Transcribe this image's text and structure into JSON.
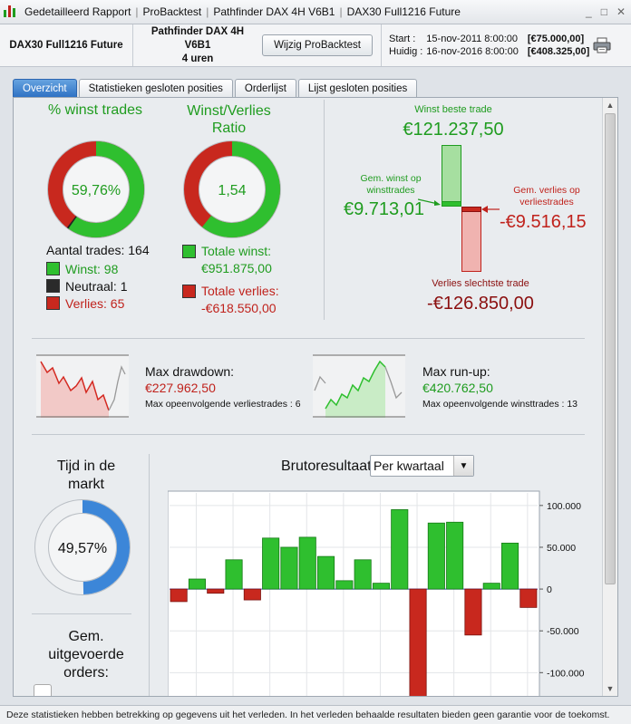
{
  "titlebar": {
    "crumbs": [
      "Gedetailleerd Rapport",
      "ProBacktest",
      "Pathfinder DAX 4H V6B1",
      "DAX30 Full1216 Future"
    ],
    "controls": [
      "_",
      "□",
      "✕"
    ]
  },
  "header": {
    "instrument": "DAX30 Full1216 Future",
    "system_name": "Pathfinder DAX 4H V6B1",
    "system_period": "4 uren",
    "change_button": "Wijzig ProBacktest",
    "start_label": "Start :",
    "start_date": "15-nov-2011 8:00:00",
    "start_value": "[€75.000,00]",
    "current_label": "Huidig :",
    "current_date": "16-nov-2016 8:00:00",
    "current_value": "[€408.325,00]"
  },
  "tabs": [
    "Overzicht",
    "Statistieken gesloten posities",
    "Orderlijst",
    "Lijst gesloten posities"
  ],
  "win_pct": {
    "title": "% winst trades",
    "value": "59,76%",
    "trades_label": "Aantal trades: 164",
    "wins": "Winst: 98",
    "neutral": "Neutraal: 1",
    "losses": "Verlies: 65",
    "win_fraction": 0.5976,
    "neutral_fraction": 0.0061,
    "loss_fraction": 0.3963
  },
  "ratio": {
    "title_line1": "Winst/Verlies",
    "title_line2": "Ratio",
    "value": "1,54",
    "total_win_label": "Totale winst:",
    "total_win_value": "€951.875,00",
    "total_loss_label": "Totale verlies:",
    "total_loss_value": "-€618.550,00",
    "win_fraction": 0.6061
  },
  "trades": {
    "best_label": "Winst beste trade",
    "best_value": "€121.237,50",
    "avg_win_label_1": "Gem. winst op",
    "avg_win_label_2": "winsttrades",
    "avg_win_value": "€9.713,01",
    "avg_loss_label_1": "Gem. verlies op",
    "avg_loss_label_2": "verliestrades",
    "avg_loss_value": "-€9.516,15",
    "worst_label": "Verlies slechtste trade",
    "worst_value": "-€126.850,00"
  },
  "drawdown": {
    "label": "Max drawdown:",
    "value": "€227.962,50",
    "sub": "Max opeenvolgende verliestrades : 6"
  },
  "runup": {
    "label": "Max run-up:",
    "value": "€420.762,50",
    "sub": "Max opeenvolgende winsttrades : 13"
  },
  "market_time": {
    "title_line1": "Tijd in de",
    "title_line2": "markt",
    "value": "49,57%",
    "fraction": 0.4957
  },
  "orders": {
    "title_line1": "Gem.",
    "title_line2": "uitgevoerde",
    "title_line3": "orders:"
  },
  "chart_data": {
    "type": "bar",
    "title": "Brutoresultaat",
    "period_select": "Per kwartaal",
    "values": [
      -15000,
      12000,
      -5000,
      35000,
      -13000,
      61000,
      50000,
      62000,
      39000,
      10000,
      35000,
      7000,
      95000,
      -130000,
      79000,
      80000,
      -55000,
      7000,
      55000,
      -22000
    ],
    "y_ticks": [
      "100.000",
      "50.000",
      "0",
      "-50.000",
      "-100.000"
    ],
    "y_tick_values": [
      100000,
      50000,
      0,
      -50000,
      -100000
    ],
    "ylim": [
      -130000,
      115000
    ],
    "grid": true,
    "positive_color": "#2fbf2f",
    "negative_color": "#c8281e"
  },
  "footer": {
    "disclaimer": "Deze statistieken hebben betrekking op gegevens uit het verleden. In het verleden behaalde resultaten bieden geen garantie voor de toekomst."
  },
  "colors": {
    "accent_blue": "#2f72c4",
    "win_green": "#1f9c1f",
    "loss_red": "#c0221c"
  }
}
